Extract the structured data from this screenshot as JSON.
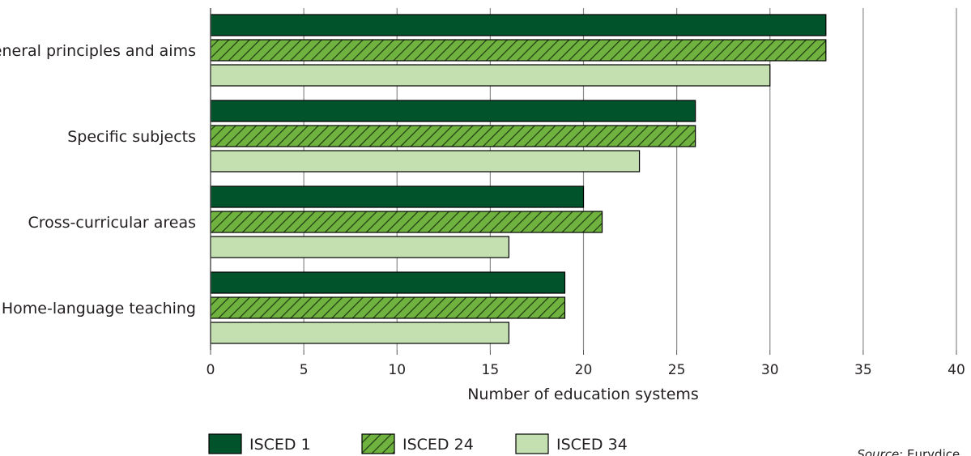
{
  "chart_data": {
    "type": "bar",
    "orientation": "horizontal",
    "categories": [
      "General principles and aims",
      "Specific subjects",
      "Cross-curricular areas",
      "Home-language teaching"
    ],
    "series": [
      {
        "name": "ISCED 1",
        "values": [
          33,
          26,
          20,
          19
        ],
        "color": "#00532b",
        "pattern": "solid"
      },
      {
        "name": "ISCED 24",
        "values": [
          33,
          26,
          21,
          19
        ],
        "color": "#6fb23f",
        "pattern": "hatched"
      },
      {
        "name": "ISCED 34",
        "values": [
          30,
          23,
          16,
          16
        ],
        "color": "#c4e0b1",
        "pattern": "solid"
      }
    ],
    "xlabel": "Number of education systems",
    "xlim": [
      0,
      40
    ],
    "xticks": [
      0,
      5,
      10,
      15,
      20,
      25,
      30,
      35,
      40
    ],
    "grid": "vertical",
    "legend": "bottom-left"
  },
  "source": {
    "label": "Source",
    "text": ": Eurydice."
  }
}
